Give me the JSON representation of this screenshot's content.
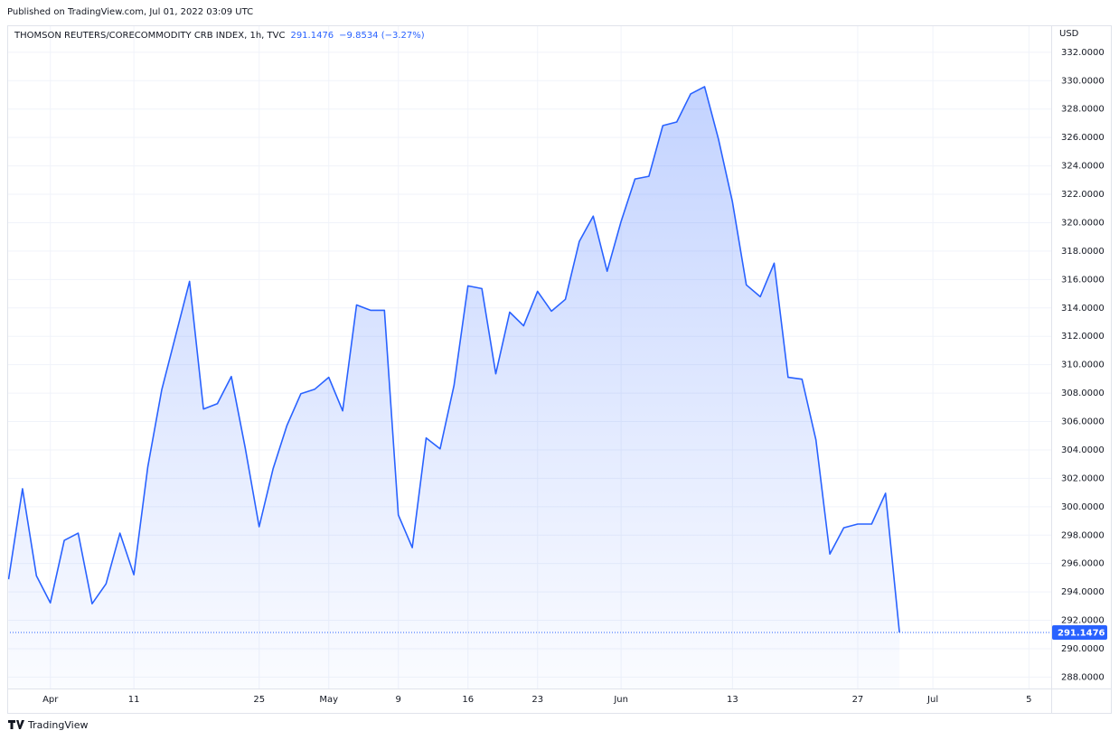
{
  "chart_data": {
    "type": "area",
    "published": "Published on TradingView.com, Jul 01, 2022 03:09 UTC",
    "title": "THOMSON REUTERS/CORECOMMODITY CRB INDEX, 1h, TVC",
    "change": "−9.8534 (−3.27%)",
    "y_axis_label": "USD",
    "brand": "TradingView",
    "x": [
      0,
      1,
      2,
      3,
      4,
      5,
      6,
      7,
      8,
      9,
      10,
      11,
      12,
      13,
      14,
      15,
      16,
      17,
      18,
      19,
      20,
      21,
      22,
      23,
      24,
      25,
      26,
      27,
      28,
      29,
      30,
      31,
      32,
      33,
      34,
      35,
      36,
      37,
      38,
      39,
      40,
      41,
      42,
      43,
      44,
      45,
      46,
      47,
      48,
      49,
      50,
      51,
      52,
      53,
      54,
      55,
      56,
      57,
      58,
      59,
      60,
      61,
      62,
      63,
      64
    ],
    "series": [
      {
        "name": "CRB INDEX",
        "color": "#2962ff",
        "values": [
          294.89,
          301.27,
          295.14,
          293.23,
          297.63,
          298.14,
          293.17,
          294.57,
          298.14,
          295.21,
          302.8,
          308.22,
          312.04,
          315.87,
          306.88,
          307.26,
          309.17,
          304.14,
          298.59,
          302.67,
          305.73,
          307.96,
          308.28,
          309.11,
          306.75,
          314.21,
          313.83,
          313.83,
          299.42,
          297.12,
          304.84,
          304.07,
          308.54,
          315.55,
          315.36,
          309.36,
          313.7,
          312.74,
          315.17,
          313.77,
          314.6,
          318.68,
          320.46,
          316.58,
          320.08,
          323.08,
          323.27,
          326.84,
          327.09,
          329.07,
          329.58,
          325.88,
          321.48,
          315.62,
          314.79,
          317.15,
          309.11,
          308.98,
          304.71,
          296.67,
          298.52,
          298.78,
          298.78,
          300.95,
          291.1476
        ]
      }
    ],
    "xlim": [
      -0.1,
      74.9
    ],
    "xticks": [
      {
        "value": 3,
        "label": "Apr"
      },
      {
        "value": 9,
        "label": "11"
      },
      {
        "value": 18,
        "label": "25"
      },
      {
        "value": 23,
        "label": "May"
      },
      {
        "value": 28,
        "label": "9"
      },
      {
        "value": 33,
        "label": "16"
      },
      {
        "value": 38,
        "label": "23"
      },
      {
        "value": 44,
        "label": "Jun"
      },
      {
        "value": 52,
        "label": "13"
      },
      {
        "value": 61,
        "label": "27"
      },
      {
        "value": 66.4,
        "label": "Jul"
      },
      {
        "value": 73.3,
        "label": "5"
      }
    ],
    "ylim": [
      287.2,
      333.9
    ],
    "yticks": [
      {
        "value": 288,
        "label": "288.0000"
      },
      {
        "value": 290,
        "label": "290.0000"
      },
      {
        "value": 292,
        "label": "292.0000"
      },
      {
        "value": 294,
        "label": "294.0000"
      },
      {
        "value": 296,
        "label": "296.0000"
      },
      {
        "value": 298,
        "label": "298.0000"
      },
      {
        "value": 300,
        "label": "300.0000"
      },
      {
        "value": 302,
        "label": "302.0000"
      },
      {
        "value": 304,
        "label": "304.0000"
      },
      {
        "value": 306,
        "label": "306.0000"
      },
      {
        "value": 308,
        "label": "308.0000"
      },
      {
        "value": 310,
        "label": "310.0000"
      },
      {
        "value": 312,
        "label": "312.0000"
      },
      {
        "value": 314,
        "label": "314.0000"
      },
      {
        "value": 316,
        "label": "316.0000"
      },
      {
        "value": 318,
        "label": "318.0000"
      },
      {
        "value": 320,
        "label": "320.0000"
      },
      {
        "value": 322,
        "label": "322.0000"
      },
      {
        "value": 324,
        "label": "324.0000"
      },
      {
        "value": 326,
        "label": "326.0000"
      },
      {
        "value": 328,
        "label": "328.0000"
      },
      {
        "value": 330,
        "label": "330.0000"
      },
      {
        "value": 332,
        "label": "332.0000"
      }
    ],
    "grid": true
  }
}
